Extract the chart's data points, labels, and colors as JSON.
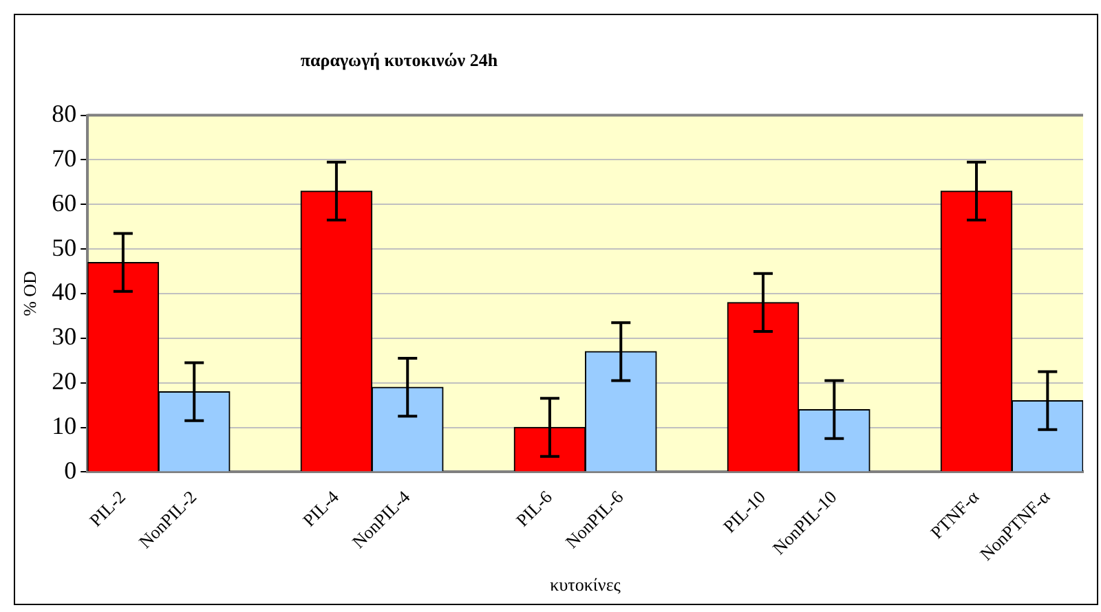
{
  "chart_data": {
    "type": "bar",
    "title": "παραγωγή κυτοκινών 24h",
    "xlabel": "κυτοκίνες",
    "ylabel": "% OD",
    "categories": [
      "PIL-2",
      "NonPIL-2",
      null,
      "PIL-4",
      "NonPIL-4",
      null,
      "PIL-6",
      "NonPIL-6",
      null,
      "PIL-10",
      "NonPIL-10",
      null,
      "PTNF-α",
      "NonPTNF-α"
    ],
    "values": [
      47,
      18,
      null,
      63,
      19,
      null,
      10,
      27,
      null,
      38,
      14,
      null,
      63,
      16
    ],
    "colors": [
      "#ff0000",
      "#99ccff",
      "#ffffff",
      "#ff0000",
      "#99ccff",
      "#ffffff",
      "#ff0000",
      "#99ccff",
      "#ffffff",
      "#ff0000",
      "#99ccff",
      "#ffffff",
      "#ff0000",
      "#99ccff"
    ],
    "errors": [
      6.5,
      6.5,
      null,
      6.5,
      6.5,
      null,
      6.5,
      6.5,
      null,
      6.5,
      6.5,
      null,
      6.5,
      6.5
    ],
    "ylim": [
      0,
      80
    ],
    "yticks": [
      0,
      10,
      20,
      30,
      40,
      50,
      60,
      70,
      80
    ],
    "grid": "y",
    "legend": false
  }
}
